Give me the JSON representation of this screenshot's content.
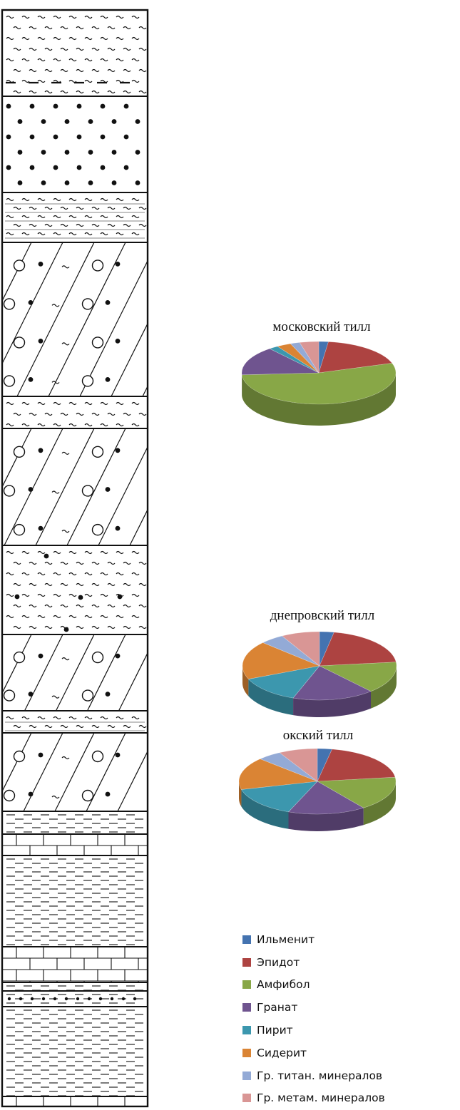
{
  "colors": {
    "ilmenite": "#4473B0",
    "epidote": "#AD4341",
    "amphibole": "#88A747",
    "garnet": "#6F548F",
    "pyrite": "#3C97AE",
    "siderite": "#DA8434",
    "ti_minerals": "#93AAD6",
    "metam_minerals": "#D99695"
  },
  "chart_data": [
    {
      "type": "pie",
      "title": "московский тилл",
      "categories": [
        "Ильменит",
        "Эпидот",
        "Амфибол",
        "Гранат",
        "Пирит",
        "Сидерит",
        "Гр. титан. минералов",
        "Гр. метам. минералов"
      ],
      "values": [
        2,
        18,
        54,
        15,
        2,
        3,
        2,
        4
      ]
    },
    {
      "type": "pie",
      "title": "днепровский тилл",
      "categories": [
        "Ильменит",
        "Эпидот",
        "Амфибол",
        "Гранат",
        "Пирит",
        "Сидерит",
        "Гр. титан. минералов",
        "Гр. метам. минералов"
      ],
      "values": [
        3,
        20,
        15,
        17,
        13,
        18,
        5,
        8
      ]
    },
    {
      "type": "pie",
      "title": "окский тилл",
      "categories": [
        "Ильменит",
        "Эпидот",
        "Амфибол",
        "Гранат",
        "Пирит",
        "Сидерит",
        "Гр. титан. минералов",
        "Гр. метам. минералов"
      ],
      "values": [
        3,
        20,
        17,
        16,
        15,
        16,
        5,
        8
      ]
    }
  ],
  "legend": {
    "items": [
      {
        "label": "Ильменит",
        "color": "#4473B0"
      },
      {
        "label": "Эпидот",
        "color": "#AD4341"
      },
      {
        "label": "Амфибол",
        "color": "#88A747"
      },
      {
        "label": "Гранат",
        "color": "#6F548F"
      },
      {
        "label": "Пирит",
        "color": "#3C97AE"
      },
      {
        "label": "Сидерит",
        "color": "#DA8434"
      },
      {
        "label": "Гр. титан. минералов",
        "color": "#93AAD6"
      },
      {
        "label": "Гр. метам. минералов",
        "color": "#D99695"
      }
    ]
  }
}
